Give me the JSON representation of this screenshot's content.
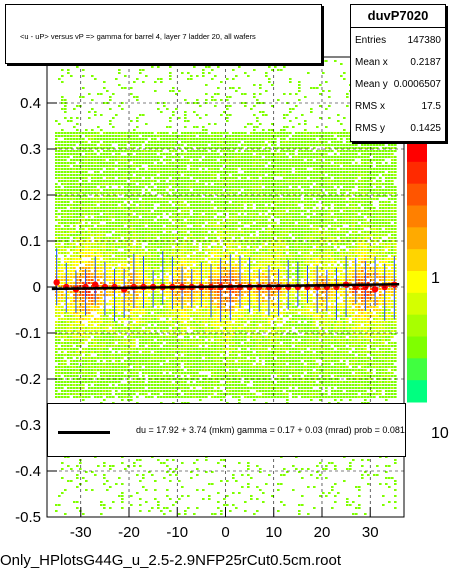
{
  "title": "<u - uP>       versus   vP =>  gamma for barrel 4, layer 7 ladder 20, all wafers",
  "stats": {
    "name": "duvP7020",
    "entries_label": "Entries",
    "entries": "147380",
    "meanx_label": "Mean x",
    "meanx": "0.2187",
    "meany_label": "Mean y",
    "meany": "0.0006507",
    "rmsx_label": "RMS x",
    "rmsx": "17.5",
    "rmsy_label": "RMS y",
    "rmsy": "0.1425"
  },
  "fit": {
    "text": "du =    17.92 +   3.74 (mkm) gamma =    0.17 +  0.03 (mrad) prob = 0.081",
    "line_color": "#000000"
  },
  "footer": "Only_HPlotsG44G_u_2.5-2.9NFP25rCut0.5cm.root",
  "palette_labels": [
    "10",
    "1",
    "10"
  ],
  "chart_data": {
    "type": "heatmap",
    "xlim": [
      -37,
      37
    ],
    "ylim": [
      -0.5,
      0.5
    ],
    "x_ticks": [
      -30,
      -20,
      -10,
      0,
      10,
      20,
      30
    ],
    "y_ticks": [
      -0.5,
      -0.4,
      -0.3,
      -0.2,
      -0.1,
      0,
      0.1,
      0.2,
      0.3,
      0.4
    ],
    "y_tick_labels": [
      "-0.5",
      "-0.4",
      "-0.3",
      "-0.2",
      "-0.1",
      "0",
      "0.1",
      "0.2",
      "0.3",
      "0.4"
    ],
    "band_ylim": [
      -0.24,
      0.34
    ],
    "profile": {
      "x": [
        -35,
        -33,
        -31,
        -29,
        -27,
        -25,
        -23,
        -21,
        -19,
        -17,
        -15,
        -13,
        -11,
        -9,
        -7,
        -5,
        -3,
        -1,
        1,
        3,
        5,
        7,
        9,
        11,
        13,
        15,
        17,
        19,
        21,
        23,
        25,
        27,
        29,
        31,
        33,
        35
      ],
      "y": [
        0.01,
        0.0,
        -0.005,
        0.0,
        0.005,
        0.0,
        0.0,
        -0.005,
        0.0,
        0.0,
        0.0,
        0.0,
        0.0,
        0.0,
        0.0,
        0.0,
        0.0,
        0.0,
        0.0,
        0.0,
        0.0,
        0.0,
        0.0,
        0.0,
        0.0,
        0.0,
        0.0,
        0.0,
        0.0,
        0.0,
        0.005,
        0.0,
        0.0,
        -0.005,
        0.0,
        0.005
      ]
    },
    "fit_line": {
      "x": [
        -36,
        36
      ],
      "y": [
        -0.004,
        0.006
      ]
    },
    "colors": {
      "marker": "#ff0000",
      "fit": "#000000",
      "grid": "#000000"
    }
  }
}
